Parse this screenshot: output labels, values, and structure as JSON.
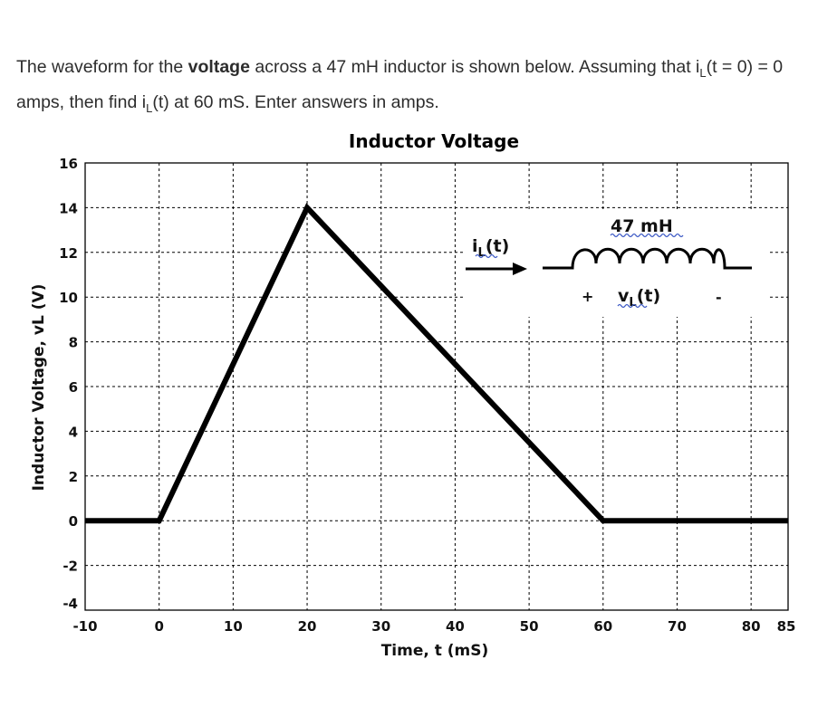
{
  "question": {
    "part1": "The waveform for the ",
    "bold_word": "voltage",
    "part2": " across a 47 mH inductor is shown below. Assuming that i",
    "sub1": "L",
    "part3": "(t = 0) = 0 amps, then find i",
    "sub2": "L",
    "part4": "(t) at 60 mS.  Enter answers in amps."
  },
  "chart_data": {
    "type": "line",
    "title": "Inductor Voltage",
    "xlabel": "Time, t (mS)",
    "ylabel": "Inductor Voltage, vL (V)",
    "xlim": [
      -10,
      85
    ],
    "ylim": [
      -4,
      16
    ],
    "x_ticks": [
      -10,
      0,
      10,
      20,
      30,
      40,
      50,
      60,
      70,
      80,
      85
    ],
    "y_ticks": [
      -4,
      -2,
      0,
      2,
      4,
      6,
      8,
      10,
      12,
      14,
      16
    ],
    "grid": true,
    "series": [
      {
        "x": [
          -10,
          0,
          20,
          60,
          85
        ],
        "y": [
          0,
          0,
          14,
          0,
          0
        ]
      }
    ],
    "annotations": {
      "current_label": "i",
      "current_sub": "L",
      "current_suffix": "(t)",
      "inductance": "47 mH",
      "voltage_label": "v",
      "voltage_sub": "L",
      "voltage_suffix": "(t)",
      "plus": "+",
      "minus": "-"
    }
  }
}
